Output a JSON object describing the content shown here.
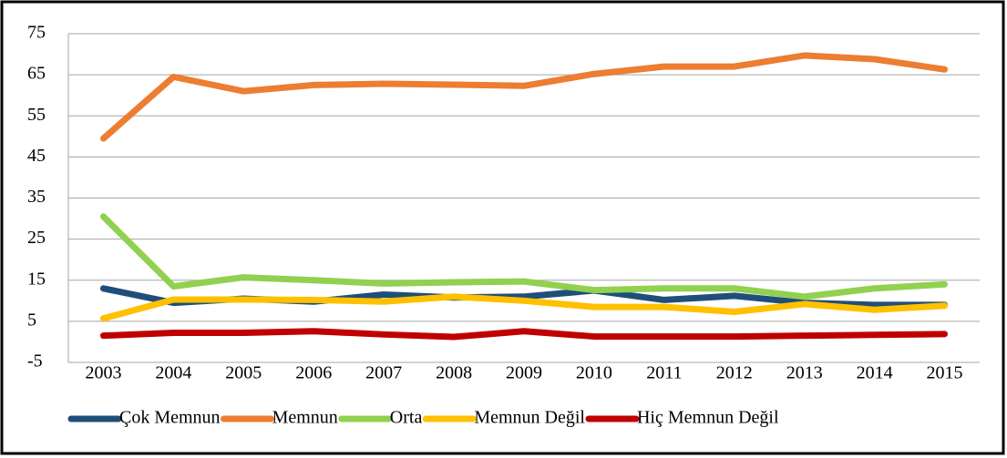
{
  "chart_data": {
    "type": "line",
    "categories": [
      "2003",
      "2004",
      "2005",
      "2006",
      "2007",
      "2008",
      "2009",
      "2010",
      "2011",
      "2012",
      "2013",
      "2014",
      "2015"
    ],
    "series": [
      {
        "name": "Çok Memnun",
        "color": "#1f4e79",
        "values": [
          13,
          9.5,
          10.5,
          9.8,
          11.5,
          10.8,
          11,
          12.5,
          10.2,
          11.2,
          9.5,
          9,
          9
        ]
      },
      {
        "name": "Memnun",
        "color": "#ed7d31",
        "values": [
          49.5,
          64.5,
          61,
          62.5,
          62.8,
          62.6,
          62.3,
          65.2,
          67,
          67,
          69.7,
          68.8,
          66.3
        ]
      },
      {
        "name": "Orta",
        "color": "#92d050",
        "values": [
          30.5,
          13.5,
          15.7,
          15,
          14.2,
          14.5,
          14.7,
          12.6,
          13,
          13,
          11,
          13,
          14
        ]
      },
      {
        "name": "Memnun Değil",
        "color": "#ffc000",
        "values": [
          5.7,
          10.3,
          10.3,
          10.2,
          9.8,
          11,
          10,
          8.5,
          8.5,
          7.3,
          9.2,
          7.8,
          8.8
        ]
      },
      {
        "name": "Hiç Memnun Değil",
        "color": "#c00000",
        "values": [
          1.5,
          2.2,
          2.2,
          2.6,
          1.8,
          1.2,
          2.6,
          1.3,
          1.3,
          1.3,
          1.5,
          1.7,
          1.9
        ]
      }
    ],
    "ylim": [
      -5,
      75
    ],
    "yticks": [
      -5,
      5,
      15,
      25,
      35,
      45,
      55,
      65,
      75
    ],
    "grid": true,
    "legend": "bottom"
  }
}
